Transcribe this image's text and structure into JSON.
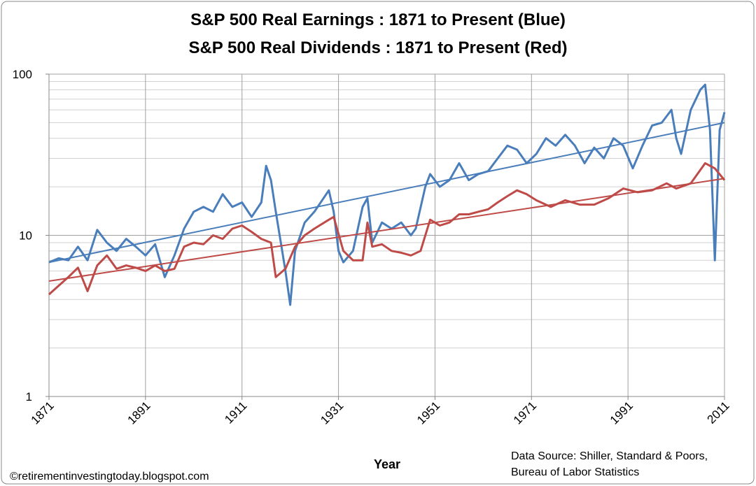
{
  "chart_data": {
    "type": "line",
    "title": [
      "S&P 500 Real Earnings : 1871 to Present (Blue)",
      "S&P 500 Real Dividends : 1871 to Present (Red)"
    ],
    "x_label": "Year",
    "source": [
      "Data Source: Shiller, Standard & Poors,",
      "Bureau of Labor Statistics"
    ],
    "credit": "©retirementinvestingtoday.blogspot.com",
    "log_scale": true,
    "grid": true,
    "minor_grid": true,
    "xlim": [
      1871,
      2011
    ],
    "xticks": [
      1871,
      1891,
      1911,
      1931,
      1951,
      1971,
      1991,
      2011
    ],
    "ylim": [
      1,
      100
    ],
    "yticks": [
      1,
      10,
      100
    ],
    "series": [
      {
        "color": "#4a7ebb",
        "x": [
          1871,
          1873,
          1875,
          1877,
          1879,
          1881,
          1883,
          1885,
          1887,
          1889,
          1891,
          1893,
          1895,
          1897,
          1899,
          1901,
          1903,
          1905,
          1907,
          1909,
          1911,
          1913,
          1915,
          1916,
          1917,
          1918,
          1920,
          1921,
          1922,
          1924,
          1926,
          1929,
          1930,
          1931,
          1932,
          1934,
          1936,
          1937,
          1938,
          1940,
          1942,
          1944,
          1946,
          1947,
          1949,
          1950,
          1952,
          1954,
          1956,
          1958,
          1960,
          1962,
          1964,
          1966,
          1968,
          1970,
          1972,
          1974,
          1976,
          1978,
          1980,
          1982,
          1984,
          1986,
          1988,
          1990,
          1992,
          1994,
          1996,
          1998,
          2000,
          2001,
          2002,
          2004,
          2006,
          2007,
          2008,
          2009,
          2010,
          2011
        ],
        "values": [
          6.8,
          7.2,
          7.0,
          8.5,
          7.0,
          10.8,
          9.0,
          8.0,
          9.5,
          8.5,
          7.5,
          8.8,
          5.5,
          7.5,
          11,
          14,
          15,
          14,
          18,
          15,
          16,
          13,
          16,
          27,
          22,
          14,
          6,
          3.7,
          8,
          12,
          14,
          19,
          14,
          8,
          6.8,
          8,
          15,
          17,
          9,
          12,
          11,
          12,
          10,
          11,
          20,
          24,
          20,
          22,
          28,
          22,
          24,
          25,
          30,
          36,
          34,
          28,
          32,
          40,
          36,
          42,
          36,
          28,
          35,
          30,
          40,
          36,
          26,
          36,
          48,
          50,
          60,
          40,
          32,
          60,
          80,
          86,
          45,
          7,
          45,
          58
        ]
      },
      {
        "color": "#be4b48",
        "x": [
          1871,
          1875,
          1877,
          1879,
          1881,
          1883,
          1885,
          1887,
          1889,
          1891,
          1893,
          1895,
          1897,
          1899,
          1901,
          1903,
          1905,
          1907,
          1909,
          1911,
          1913,
          1915,
          1917,
          1918,
          1920,
          1922,
          1924,
          1926,
          1929,
          1930,
          1932,
          1934,
          1936,
          1937,
          1938,
          1940,
          1942,
          1944,
          1946,
          1948,
          1950,
          1952,
          1954,
          1956,
          1958,
          1960,
          1962,
          1964,
          1966,
          1968,
          1970,
          1972,
          1975,
          1978,
          1981,
          1984,
          1987,
          1990,
          1993,
          1996,
          1999,
          2001,
          2004,
          2007,
          2009,
          2011
        ],
        "values": [
          4.3,
          5.5,
          6.3,
          4.5,
          6.5,
          7.5,
          6.2,
          6.5,
          6.3,
          6.0,
          6.5,
          6.0,
          6.2,
          8.5,
          9,
          8.8,
          10,
          9.5,
          11,
          11.5,
          10.5,
          9.5,
          9,
          5.5,
          6.2,
          8.5,
          10,
          11,
          12.5,
          13,
          8,
          7,
          7,
          12,
          8.5,
          8.8,
          8,
          7.8,
          7.5,
          8,
          12.5,
          11.5,
          12,
          13.5,
          13.5,
          14,
          14.5,
          16,
          17.5,
          19,
          18,
          16.5,
          15,
          16.5,
          15.5,
          15.5,
          17,
          19.5,
          18.5,
          19,
          21,
          19.5,
          21,
          28,
          26,
          22
        ]
      },
      {
        "color": "#4a7ebb",
        "x": [
          1871,
          2011
        ],
        "values": [
          6.8,
          50
        ]
      },
      {
        "color": "#be4b48",
        "x": [
          1871,
          2011
        ],
        "values": [
          5.2,
          22.5
        ]
      }
    ]
  }
}
